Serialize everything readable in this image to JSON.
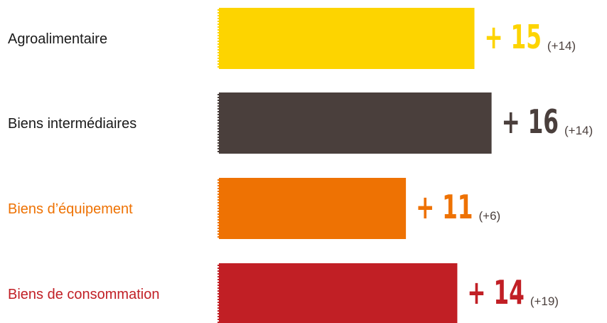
{
  "chart_data": {
    "type": "bar",
    "orientation": "horizontal",
    "title": "",
    "xlabel": "",
    "ylabel": "",
    "categories": [
      "Agroalimentaire",
      "Biens intermédiaires",
      "Biens d’équipement",
      "Biens de consommation"
    ],
    "values": [
      15,
      16,
      11,
      14
    ],
    "value_labels": [
      "+ 15",
      "+ 16",
      "+ 11",
      "+ 14"
    ],
    "previous_labels": [
      "(+14)",
      "(+14)",
      "(+6)",
      "(+19)"
    ],
    "previous_values": [
      14,
      14,
      6,
      19
    ],
    "colors": [
      "#FDD400",
      "#4A3F3C",
      "#EE7203",
      "#C11F25"
    ],
    "label_colors": [
      "#1a1a1a",
      "#1a1a1a",
      "#EE7203",
      "#C11F25"
    ],
    "value_colors": [
      "#FDD400",
      "#4A3F3C",
      "#EE7203",
      "#C11F25"
    ],
    "xlim": [
      0,
      16
    ],
    "grid": false,
    "legend": "none"
  }
}
